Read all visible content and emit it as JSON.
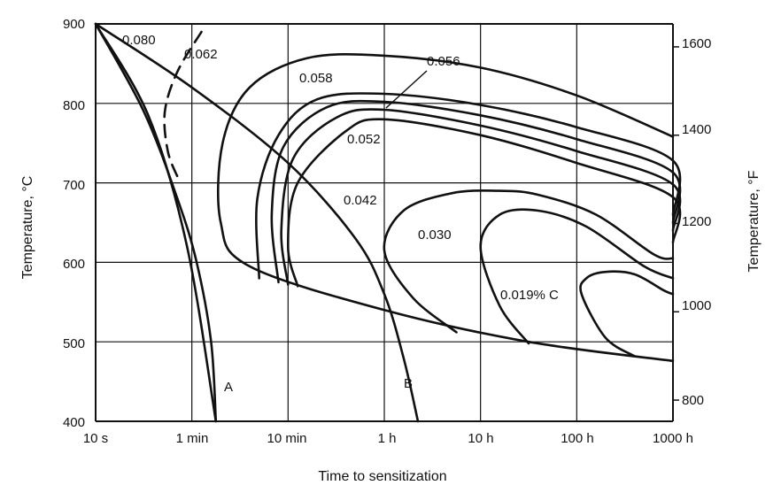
{
  "chart_data": {
    "type": "line",
    "xlabel": "Time to sensitization",
    "ylabel_left": "Temperature, °C",
    "ylabel_right": "Temperature, °F",
    "x_scale": "log",
    "x_ticks": [
      "10 s",
      "1 min",
      "10 min",
      "1 h",
      "10 h",
      "100 h",
      "1000 h"
    ],
    "y_left_range": [
      400,
      900
    ],
    "y_left_ticks": [
      "400",
      "500",
      "600",
      "700",
      "800",
      "900"
    ],
    "y_right_ticks": [
      "800",
      "1000",
      "1200",
      "1400",
      "1600"
    ],
    "grid": true,
    "series": [
      {
        "name": "0.080",
        "style": "solid",
        "points": [
          [
            0.0,
            900
          ],
          [
            0.55,
            784
          ],
          [
            0.95,
            620
          ],
          [
            1.25,
            400
          ]
        ]
      },
      {
        "name": "0.062",
        "style": "dashed",
        "points": [
          [
            1.1,
            890
          ],
          [
            0.85,
            840
          ],
          [
            0.72,
            790
          ],
          [
            0.75,
            740
          ],
          [
            0.86,
            705
          ]
        ]
      },
      {
        "name": "0.058",
        "style": "solid",
        "points": [
          [
            6.0,
            476
          ],
          [
            4.5,
            500
          ],
          [
            3.0,
            540
          ],
          [
            1.6,
            595
          ],
          [
            1.3,
            650
          ],
          [
            1.32,
            750
          ],
          [
            1.6,
            820
          ],
          [
            2.2,
            857
          ],
          [
            3.0,
            860
          ],
          [
            4.0,
            845
          ],
          [
            5.0,
            810
          ],
          [
            6.0,
            758
          ]
        ]
      },
      {
        "name": "0.056",
        "style": "solid",
        "points": [
          [
            1.7,
            580
          ],
          [
            1.68,
            680
          ],
          [
            1.9,
            760
          ],
          [
            2.3,
            805
          ],
          [
            3.0,
            812
          ],
          [
            4.0,
            798
          ],
          [
            5.0,
            770
          ],
          [
            6.0,
            728
          ],
          [
            6.0,
            660
          ]
        ]
      },
      {
        "name": "",
        "style": "solid",
        "points": [
          [
            1.9,
            575
          ],
          [
            1.83,
            660
          ],
          [
            1.95,
            745
          ],
          [
            2.4,
            795
          ],
          [
            3.0,
            802
          ],
          [
            4.0,
            785
          ],
          [
            5.0,
            755
          ],
          [
            6.0,
            713
          ],
          [
            6.0,
            650
          ]
        ]
      },
      {
        "name": "",
        "style": "solid",
        "points": [
          [
            2.0,
            572
          ],
          [
            1.93,
            640
          ],
          [
            2.05,
            730
          ],
          [
            2.5,
            782
          ],
          [
            3.0,
            792
          ],
          [
            4.0,
            772
          ],
          [
            5.0,
            740
          ],
          [
            6.0,
            698
          ],
          [
            6.0,
            640
          ]
        ]
      },
      {
        "name": "0.052",
        "style": "solid",
        "points": [
          [
            2.1,
            570
          ],
          [
            2.0,
            620
          ],
          [
            2.1,
            700
          ],
          [
            2.6,
            765
          ],
          [
            3.0,
            780
          ],
          [
            4.0,
            760
          ],
          [
            5.0,
            725
          ],
          [
            6.0,
            682
          ],
          [
            6.0,
            625
          ]
        ]
      },
      {
        "name": "0.042",
        "style": "solid",
        "points": [
          [
            3.75,
            512
          ],
          [
            3.3,
            555
          ],
          [
            3.0,
            615
          ],
          [
            3.2,
            665
          ],
          [
            3.7,
            687
          ],
          [
            4.2,
            690
          ],
          [
            4.6,
            685
          ],
          [
            5.2,
            660
          ],
          [
            5.8,
            610
          ],
          [
            6.0,
            605
          ]
        ]
      },
      {
        "name": "0.030",
        "style": "solid",
        "points": [
          [
            4.5,
            498
          ],
          [
            4.2,
            545
          ],
          [
            4.0,
            620
          ],
          [
            4.2,
            660
          ],
          [
            4.6,
            665
          ],
          [
            5.1,
            645
          ],
          [
            5.7,
            595
          ],
          [
            6.0,
            580
          ]
        ]
      },
      {
        "name": "0.019% C",
        "style": "solid",
        "points": [
          [
            5.6,
            482
          ],
          [
            5.3,
            505
          ],
          [
            5.05,
            560
          ],
          [
            5.1,
            580
          ],
          [
            5.3,
            588
          ],
          [
            5.6,
            585
          ],
          [
            5.9,
            565
          ],
          [
            6.0,
            560
          ]
        ]
      },
      {
        "name": "A",
        "style": "solid",
        "points": [
          [
            0.0,
            900
          ],
          [
            0.5,
            790
          ],
          [
            0.85,
            680
          ],
          [
            1.05,
            600
          ],
          [
            1.2,
            500
          ],
          [
            1.25,
            400
          ]
        ]
      },
      {
        "name": "B",
        "style": "solid",
        "points": [
          [
            0.0,
            900
          ],
          [
            1.0,
            820
          ],
          [
            2.0,
            725
          ],
          [
            2.7,
            630
          ],
          [
            3.0,
            560
          ],
          [
            3.2,
            480
          ],
          [
            3.35,
            400
          ]
        ]
      }
    ]
  }
}
